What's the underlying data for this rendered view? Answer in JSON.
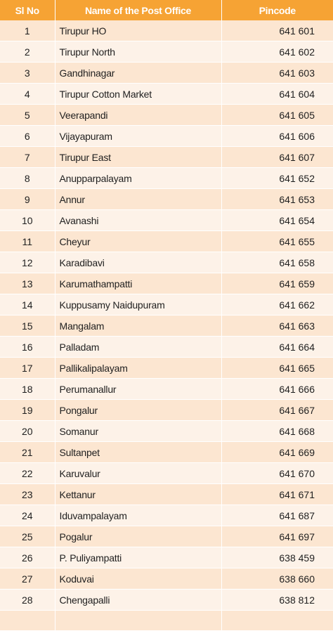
{
  "header": {
    "sl": "Sl No",
    "name": "Name of the Post Office",
    "pin": "Pincode"
  },
  "rows": [
    {
      "sl": "1",
      "name": "Tirupur HO",
      "pin": "641 601"
    },
    {
      "sl": "2",
      "name": "Tirupur North",
      "pin": "641 602"
    },
    {
      "sl": "3",
      "name": "Gandhinagar",
      "pin": "641 603"
    },
    {
      "sl": "4",
      "name": "Tirupur Cotton Market",
      "pin": "641 604"
    },
    {
      "sl": "5",
      "name": "Veerapandi",
      "pin": "641 605"
    },
    {
      "sl": "6",
      "name": "Vijayapuram",
      "pin": "641 606"
    },
    {
      "sl": "7",
      "name": "Tirupur East",
      "pin": "641 607"
    },
    {
      "sl": "8",
      "name": "Anupparpalayam",
      "pin": "641 652"
    },
    {
      "sl": "9",
      "name": "Annur",
      "pin": "641 653"
    },
    {
      "sl": "10",
      "name": "Avanashi",
      "pin": "641 654"
    },
    {
      "sl": "11",
      "name": "Cheyur",
      "pin": "641 655"
    },
    {
      "sl": "12",
      "name": "Karadibavi",
      "pin": "641 658"
    },
    {
      "sl": "13",
      "name": "Karumathampatti",
      "pin": "641 659"
    },
    {
      "sl": "14",
      "name": "Kuppusamy Naidupuram",
      "pin": "641 662"
    },
    {
      "sl": "15",
      "name": "Mangalam",
      "pin": "641 663"
    },
    {
      "sl": "16",
      "name": "Palladam",
      "pin": "641 664"
    },
    {
      "sl": "17",
      "name": "Pallikalipalayam",
      "pin": "641 665"
    },
    {
      "sl": "18",
      "name": "Perumanallur",
      "pin": "641 666"
    },
    {
      "sl": "19",
      "name": "Pongalur",
      "pin": "641 667"
    },
    {
      "sl": "20",
      "name": "Somanur",
      "pin": "641 668"
    },
    {
      "sl": "21",
      "name": "Sultanpet",
      "pin": "641 669"
    },
    {
      "sl": "22",
      "name": "Karuvalur",
      "pin": "641 670"
    },
    {
      "sl": "23",
      "name": "Kettanur",
      "pin": "641 671"
    },
    {
      "sl": "24",
      "name": "Iduvampalayam",
      "pin": "641 687"
    },
    {
      "sl": "25",
      "name": "Pogalur",
      "pin": "641 697"
    },
    {
      "sl": "26",
      "name": "P. Puliyampatti",
      "pin": "638 459"
    },
    {
      "sl": "27",
      "name": "Koduvai",
      "pin": "638 660"
    },
    {
      "sl": "28",
      "name": "Chengapalli",
      "pin": "638 812"
    }
  ],
  "colors": {
    "header_bg": "#f6a334",
    "row_odd": "#fce6d1",
    "row_even": "#fdf2e8"
  }
}
